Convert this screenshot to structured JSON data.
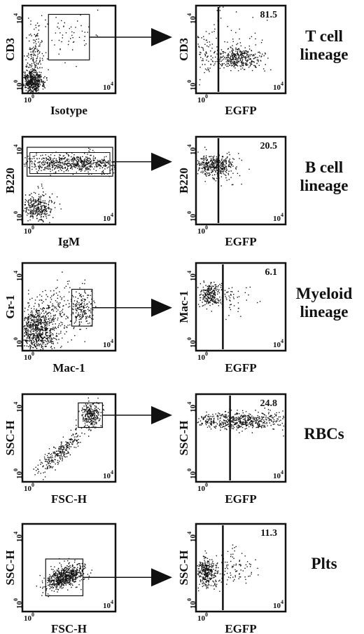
{
  "axis_ticks": {
    "base": "10",
    "low_exp": "0",
    "high_exp": "4"
  },
  "panels": [
    {
      "left": {
        "y_label": "CD3",
        "x_label": "Isotype"
      },
      "right": {
        "y_label": "CD3",
        "x_label": "EGFP",
        "percent": 81.5
      },
      "lineage": [
        "T cell",
        "lineage"
      ]
    },
    {
      "left": {
        "y_label": "B220",
        "x_label": "IgM"
      },
      "right": {
        "y_label": "B220",
        "x_label": "EGFP",
        "percent": 20.5
      },
      "lineage": [
        "B cell",
        "lineage"
      ]
    },
    {
      "left": {
        "y_label": "Gr-1",
        "x_label": "Mac-1"
      },
      "right": {
        "y_label": "Mac-1",
        "x_label": "EGFP",
        "percent": 6.1
      },
      "lineage": [
        "Myeloid",
        "lineage"
      ]
    },
    {
      "left": {
        "y_label": "SSC-H",
        "x_label": "FSC-H"
      },
      "right": {
        "y_label": "SSC-H",
        "x_label": "EGFP",
        "percent": 24.8
      },
      "lineage": [
        "RBCs"
      ]
    },
    {
      "left": {
        "y_label": "SSC-H",
        "x_label": "FSC-H"
      },
      "right": {
        "y_label": "SSC-H",
        "x_label": "EGFP",
        "percent": 11.3
      },
      "lineage": [
        "Plts"
      ]
    }
  ]
}
